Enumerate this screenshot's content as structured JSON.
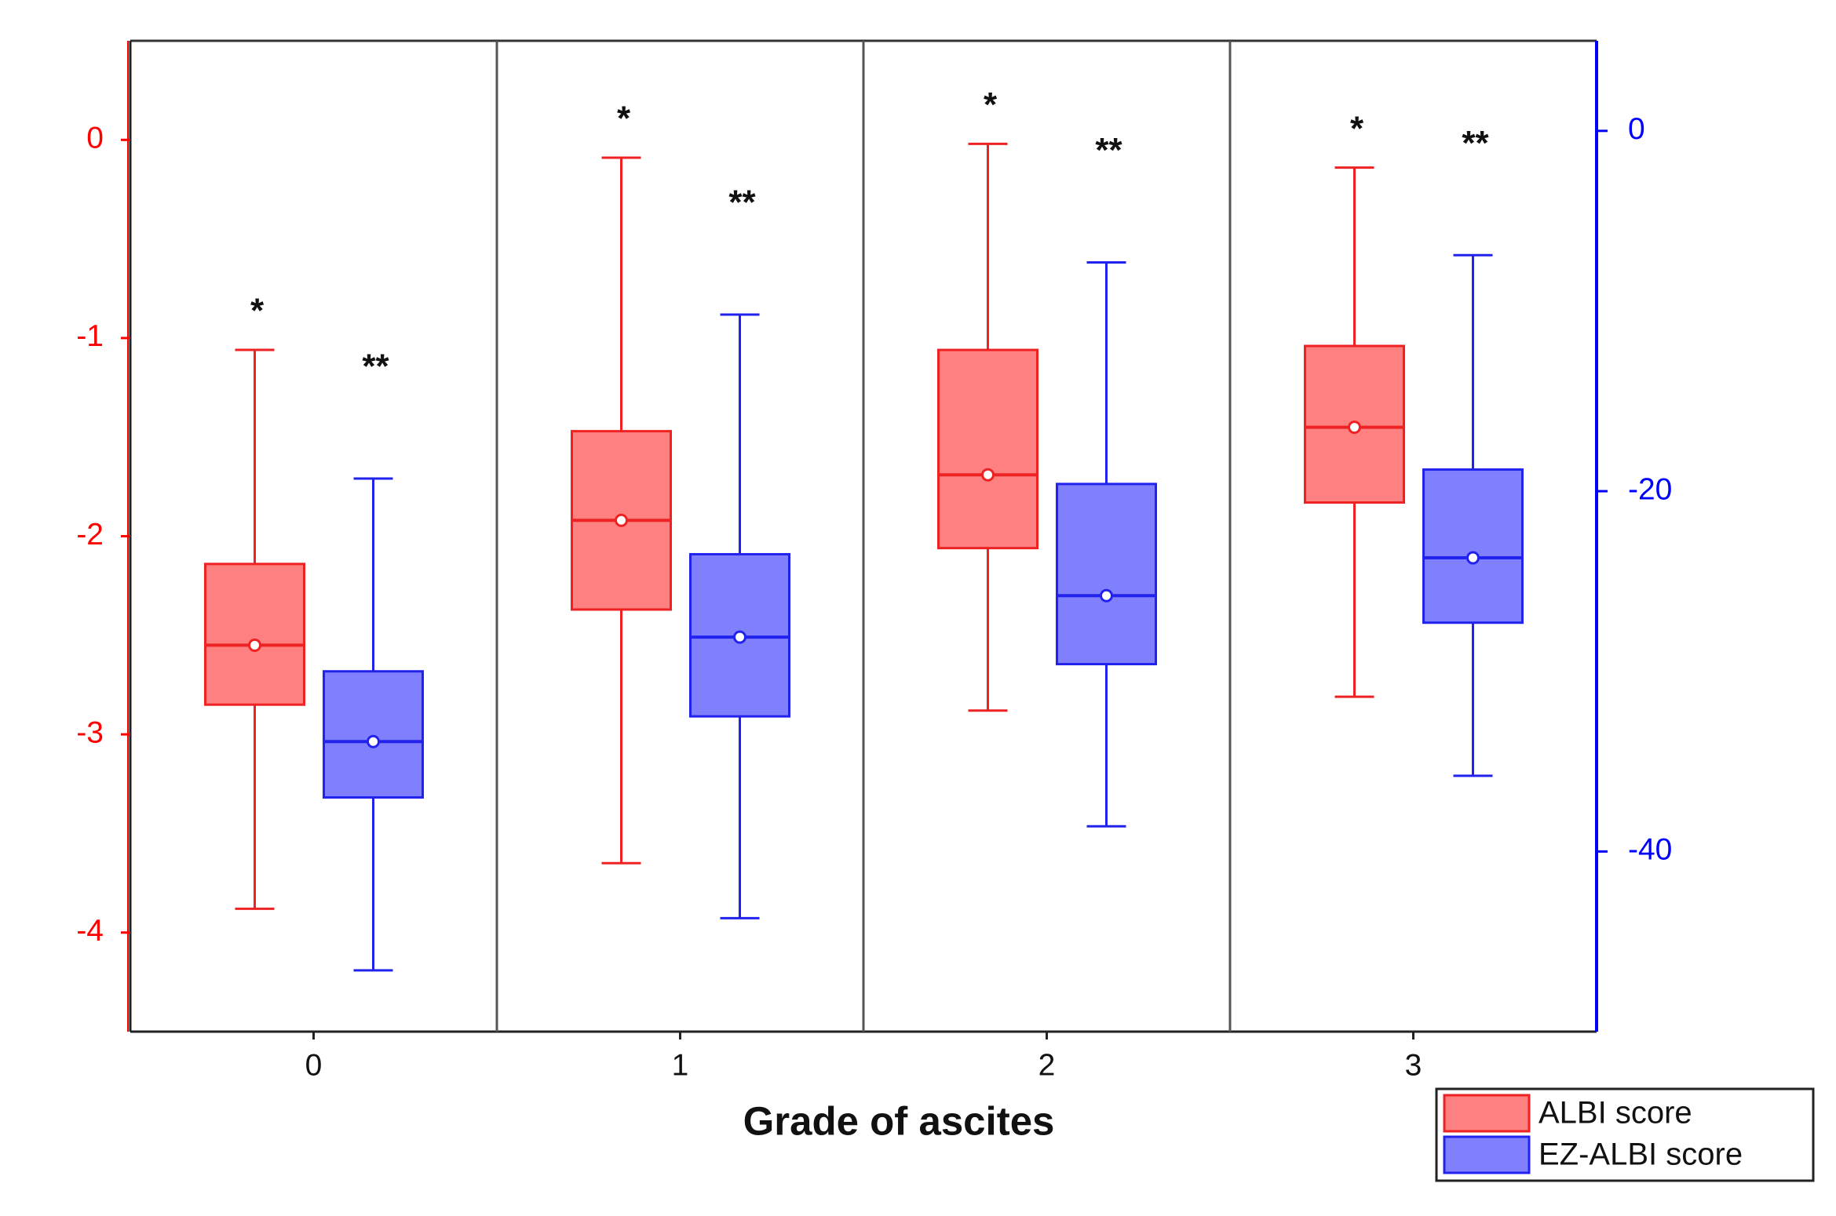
{
  "chart_data": {
    "type": "box",
    "x_label": "Grade of ascites",
    "categories": [
      "0",
      "1",
      "2",
      "3"
    ],
    "ylim": [
      -4.5,
      0.5
    ],
    "yticks": [
      -4,
      -3,
      -2,
      -1,
      0
    ],
    "y_color": "#ff0000",
    "y2lim": [
      -50,
      5
    ],
    "y2ticks": [
      -40,
      -20,
      0
    ],
    "y2_color": "#0000ff",
    "series": [
      {
        "name": "ALBI score",
        "color": "#ff8080",
        "edge": "#ee2222",
        "axis": "y",
        "whisker_high": [
          -1.06,
          -0.09,
          -0.02,
          -0.14
        ],
        "q3": [
          -2.14,
          -1.47,
          -1.06,
          -1.04
        ],
        "median": [
          -2.55,
          -1.92,
          -1.69,
          -1.45
        ],
        "mean": [
          -2.55,
          -1.92,
          -1.69,
          -1.45
        ],
        "q1": [
          -2.85,
          -2.37,
          -2.06,
          -1.83
        ],
        "whisker_low": [
          -3.88,
          -3.65,
          -2.88,
          -2.81
        ],
        "annotations": [
          "*",
          "*",
          "*",
          "*"
        ]
      },
      {
        "name": "EZ-ALBI score",
        "color": "#8080ff",
        "edge": "#2222ee",
        "axis": "y2",
        "whisker_high": [
          -19.3,
          -10.2,
          -7.3,
          -6.9
        ],
        "q3": [
          -30.0,
          -23.5,
          -19.6,
          -18.8
        ],
        "median": [
          -33.9,
          -28.1,
          -25.8,
          -23.7
        ],
        "mean": [
          -33.9,
          -28.1,
          -25.8,
          -23.7
        ],
        "q1": [
          -37.0,
          -32.5,
          -29.6,
          -27.3
        ],
        "whisker_low": [
          -46.6,
          -43.7,
          -38.6,
          -35.8
        ],
        "annotations": [
          "**",
          "**",
          "**",
          "**"
        ]
      }
    ]
  }
}
